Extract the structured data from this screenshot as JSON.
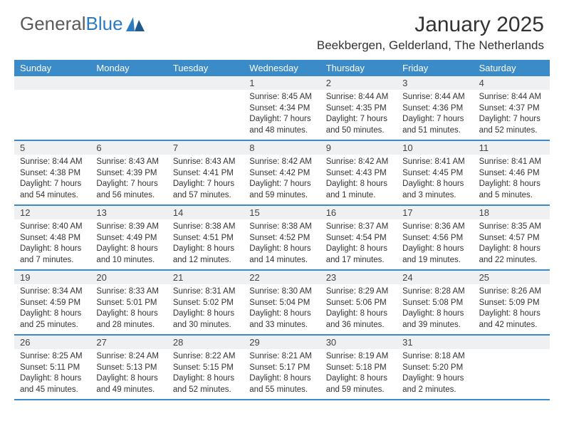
{
  "logo": {
    "text1": "General",
    "text2": "Blue"
  },
  "title": "January 2025",
  "location": "Beekbergen, Gelderland, The Netherlands",
  "dayNames": [
    "Sunday",
    "Monday",
    "Tuesday",
    "Wednesday",
    "Thursday",
    "Friday",
    "Saturday"
  ],
  "colors": {
    "header_bg": "#3b8bc8",
    "header_text": "#ffffff",
    "daynum_bg": "#eef0f1",
    "border": "#3b8bc8",
    "text": "#333333",
    "logo_gray": "#5a5a5a",
    "logo_blue": "#2d7cc0"
  },
  "weeks": [
    [
      {
        "day": "",
        "sunrise": "",
        "sunset": "",
        "daylight": ""
      },
      {
        "day": "",
        "sunrise": "",
        "sunset": "",
        "daylight": ""
      },
      {
        "day": "",
        "sunrise": "",
        "sunset": "",
        "daylight": ""
      },
      {
        "day": "1",
        "sunrise": "Sunrise: 8:45 AM",
        "sunset": "Sunset: 4:34 PM",
        "daylight": "Daylight: 7 hours and 48 minutes."
      },
      {
        "day": "2",
        "sunrise": "Sunrise: 8:44 AM",
        "sunset": "Sunset: 4:35 PM",
        "daylight": "Daylight: 7 hours and 50 minutes."
      },
      {
        "day": "3",
        "sunrise": "Sunrise: 8:44 AM",
        "sunset": "Sunset: 4:36 PM",
        "daylight": "Daylight: 7 hours and 51 minutes."
      },
      {
        "day": "4",
        "sunrise": "Sunrise: 8:44 AM",
        "sunset": "Sunset: 4:37 PM",
        "daylight": "Daylight: 7 hours and 52 minutes."
      }
    ],
    [
      {
        "day": "5",
        "sunrise": "Sunrise: 8:44 AM",
        "sunset": "Sunset: 4:38 PM",
        "daylight": "Daylight: 7 hours and 54 minutes."
      },
      {
        "day": "6",
        "sunrise": "Sunrise: 8:43 AM",
        "sunset": "Sunset: 4:39 PM",
        "daylight": "Daylight: 7 hours and 56 minutes."
      },
      {
        "day": "7",
        "sunrise": "Sunrise: 8:43 AM",
        "sunset": "Sunset: 4:41 PM",
        "daylight": "Daylight: 7 hours and 57 minutes."
      },
      {
        "day": "8",
        "sunrise": "Sunrise: 8:42 AM",
        "sunset": "Sunset: 4:42 PM",
        "daylight": "Daylight: 7 hours and 59 minutes."
      },
      {
        "day": "9",
        "sunrise": "Sunrise: 8:42 AM",
        "sunset": "Sunset: 4:43 PM",
        "daylight": "Daylight: 8 hours and 1 minute."
      },
      {
        "day": "10",
        "sunrise": "Sunrise: 8:41 AM",
        "sunset": "Sunset: 4:45 PM",
        "daylight": "Daylight: 8 hours and 3 minutes."
      },
      {
        "day": "11",
        "sunrise": "Sunrise: 8:41 AM",
        "sunset": "Sunset: 4:46 PM",
        "daylight": "Daylight: 8 hours and 5 minutes."
      }
    ],
    [
      {
        "day": "12",
        "sunrise": "Sunrise: 8:40 AM",
        "sunset": "Sunset: 4:48 PM",
        "daylight": "Daylight: 8 hours and 7 minutes."
      },
      {
        "day": "13",
        "sunrise": "Sunrise: 8:39 AM",
        "sunset": "Sunset: 4:49 PM",
        "daylight": "Daylight: 8 hours and 10 minutes."
      },
      {
        "day": "14",
        "sunrise": "Sunrise: 8:38 AM",
        "sunset": "Sunset: 4:51 PM",
        "daylight": "Daylight: 8 hours and 12 minutes."
      },
      {
        "day": "15",
        "sunrise": "Sunrise: 8:38 AM",
        "sunset": "Sunset: 4:52 PM",
        "daylight": "Daylight: 8 hours and 14 minutes."
      },
      {
        "day": "16",
        "sunrise": "Sunrise: 8:37 AM",
        "sunset": "Sunset: 4:54 PM",
        "daylight": "Daylight: 8 hours and 17 minutes."
      },
      {
        "day": "17",
        "sunrise": "Sunrise: 8:36 AM",
        "sunset": "Sunset: 4:56 PM",
        "daylight": "Daylight: 8 hours and 19 minutes."
      },
      {
        "day": "18",
        "sunrise": "Sunrise: 8:35 AM",
        "sunset": "Sunset: 4:57 PM",
        "daylight": "Daylight: 8 hours and 22 minutes."
      }
    ],
    [
      {
        "day": "19",
        "sunrise": "Sunrise: 8:34 AM",
        "sunset": "Sunset: 4:59 PM",
        "daylight": "Daylight: 8 hours and 25 minutes."
      },
      {
        "day": "20",
        "sunrise": "Sunrise: 8:33 AM",
        "sunset": "Sunset: 5:01 PM",
        "daylight": "Daylight: 8 hours and 28 minutes."
      },
      {
        "day": "21",
        "sunrise": "Sunrise: 8:31 AM",
        "sunset": "Sunset: 5:02 PM",
        "daylight": "Daylight: 8 hours and 30 minutes."
      },
      {
        "day": "22",
        "sunrise": "Sunrise: 8:30 AM",
        "sunset": "Sunset: 5:04 PM",
        "daylight": "Daylight: 8 hours and 33 minutes."
      },
      {
        "day": "23",
        "sunrise": "Sunrise: 8:29 AM",
        "sunset": "Sunset: 5:06 PM",
        "daylight": "Daylight: 8 hours and 36 minutes."
      },
      {
        "day": "24",
        "sunrise": "Sunrise: 8:28 AM",
        "sunset": "Sunset: 5:08 PM",
        "daylight": "Daylight: 8 hours and 39 minutes."
      },
      {
        "day": "25",
        "sunrise": "Sunrise: 8:26 AM",
        "sunset": "Sunset: 5:09 PM",
        "daylight": "Daylight: 8 hours and 42 minutes."
      }
    ],
    [
      {
        "day": "26",
        "sunrise": "Sunrise: 8:25 AM",
        "sunset": "Sunset: 5:11 PM",
        "daylight": "Daylight: 8 hours and 45 minutes."
      },
      {
        "day": "27",
        "sunrise": "Sunrise: 8:24 AM",
        "sunset": "Sunset: 5:13 PM",
        "daylight": "Daylight: 8 hours and 49 minutes."
      },
      {
        "day": "28",
        "sunrise": "Sunrise: 8:22 AM",
        "sunset": "Sunset: 5:15 PM",
        "daylight": "Daylight: 8 hours and 52 minutes."
      },
      {
        "day": "29",
        "sunrise": "Sunrise: 8:21 AM",
        "sunset": "Sunset: 5:17 PM",
        "daylight": "Daylight: 8 hours and 55 minutes."
      },
      {
        "day": "30",
        "sunrise": "Sunrise: 8:19 AM",
        "sunset": "Sunset: 5:18 PM",
        "daylight": "Daylight: 8 hours and 59 minutes."
      },
      {
        "day": "31",
        "sunrise": "Sunrise: 8:18 AM",
        "sunset": "Sunset: 5:20 PM",
        "daylight": "Daylight: 9 hours and 2 minutes."
      },
      {
        "day": "",
        "sunrise": "",
        "sunset": "",
        "daylight": ""
      }
    ]
  ]
}
